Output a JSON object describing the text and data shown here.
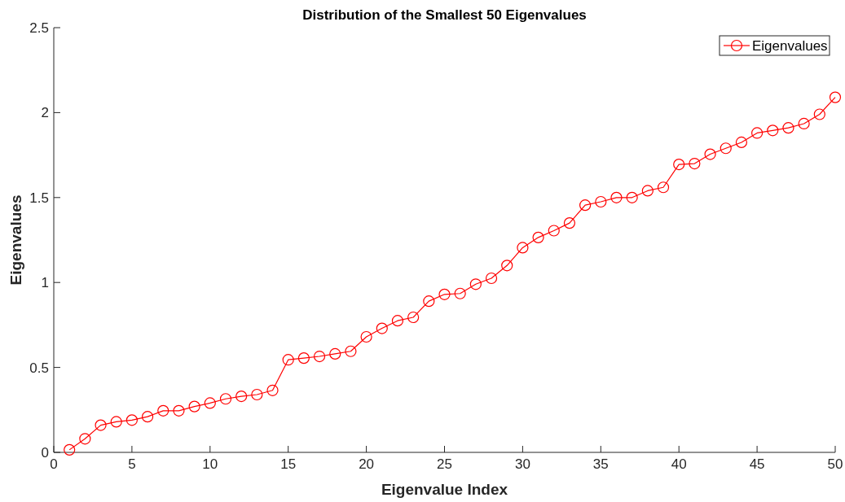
{
  "chart_data": {
    "type": "line",
    "title": "Distribution of the Smallest 50 Eigenvalues",
    "xlabel": "Eigenvalue Index",
    "ylabel": "Eigenvalues",
    "x": [
      1,
      2,
      3,
      4,
      5,
      6,
      7,
      8,
      9,
      10,
      11,
      12,
      13,
      14,
      15,
      16,
      17,
      18,
      19,
      20,
      21,
      22,
      23,
      24,
      25,
      26,
      27,
      28,
      29,
      30,
      31,
      32,
      33,
      34,
      35,
      36,
      37,
      38,
      39,
      40,
      41,
      42,
      43,
      44,
      45,
      46,
      47,
      48,
      49,
      50
    ],
    "series": [
      {
        "name": "Eigenvalues",
        "color": "#ff0000",
        "values": [
          0.015,
          0.08,
          0.16,
          0.18,
          0.19,
          0.21,
          0.245,
          0.245,
          0.27,
          0.29,
          0.315,
          0.33,
          0.34,
          0.365,
          0.545,
          0.555,
          0.565,
          0.58,
          0.595,
          0.68,
          0.73,
          0.775,
          0.795,
          0.89,
          0.93,
          0.935,
          0.99,
          1.025,
          1.1,
          1.205,
          1.265,
          1.305,
          1.35,
          1.455,
          1.475,
          1.5,
          1.5,
          1.54,
          1.56,
          1.695,
          1.7,
          1.755,
          1.79,
          1.825,
          1.88,
          1.895,
          1.91,
          1.935,
          1.99,
          2.09
        ]
      }
    ],
    "xlim": [
      0,
      50
    ],
    "xticks": [
      0,
      5,
      10,
      15,
      20,
      25,
      30,
      35,
      40,
      45,
      50
    ],
    "ylim": [
      0,
      2.5
    ],
    "yticks": [
      0,
      0.5,
      1,
      1.5,
      2,
      2.5
    ],
    "grid": false,
    "legend": "top right",
    "marker": "circle",
    "line_style": "solid"
  }
}
